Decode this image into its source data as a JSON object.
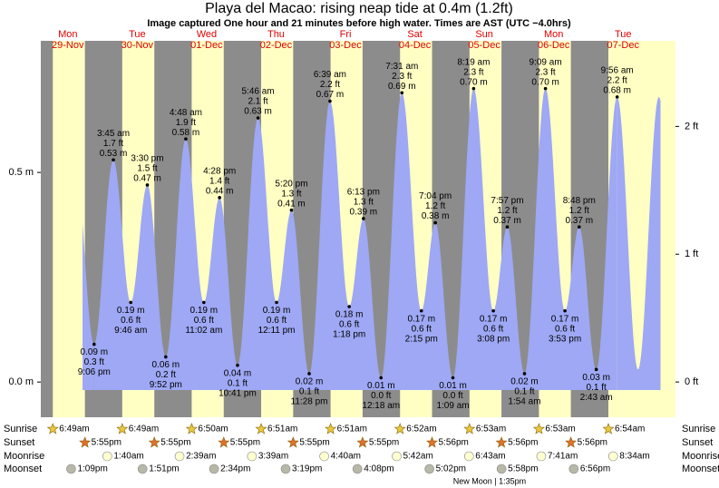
{
  "chart_data": {
    "type": "tide",
    "title": "Playa del Macao: rising  neap tide at 0.4m (1.2ft)",
    "subtitle": "Image captured One hour and 21 minutes before high water. Times are AST (UTC −4.0hrs)",
    "days": [
      "Mon",
      "Tue",
      "Wed",
      "Thu",
      "Fri",
      "Sat",
      "Sun",
      "Mon",
      "Tue"
    ],
    "dates": [
      "29-Nov",
      "30-Nov",
      "01-Dec",
      "02-Dec",
      "03-Dec",
      "04-Dec",
      "05-Dec",
      "06-Dec",
      "07-Dec"
    ],
    "times": [
      "9:06 pm",
      "3:45 am",
      "9:46 am",
      "3:30 pm",
      "9:52 pm",
      "4:48 am",
      "11:02 am",
      "4:28 pm",
      "10:41 pm",
      "5:46 am",
      "12:11 pm",
      "5:20 pm",
      "11:28 pm",
      "6:39 am",
      "1:18 pm",
      "6:13 pm",
      "12:18 am",
      "7:31 am",
      "2:15 pm",
      "7:04 pm",
      "1:09 am",
      "8:19 am",
      "3:08 pm",
      "7:57 pm",
      "1:54 am",
      "9:09 am",
      "3:53 pm",
      "8:48 pm",
      "2:43 am",
      "9:56 am"
    ],
    "heights": [
      0.09,
      0.53,
      0.19,
      0.47,
      0.06,
      0.58,
      0.19,
      0.44,
      0.04,
      0.63,
      0.19,
      0.41,
      0.02,
      0.67,
      0.18,
      0.39,
      0.01,
      0.69,
      0.17,
      0.38,
      0.01,
      0.7,
      0.17,
      0.37,
      0.02,
      0.7,
      0.17,
      0.37,
      0.03,
      0.68
    ],
    "height_labels": [
      "0.09 m",
      "0.53 m",
      "0.19 m",
      "0.47 m",
      "0.06 m",
      "0.58 m",
      "0.19 m",
      "0.44 m",
      "0.04 m",
      "0.63 m",
      "0.19 m",
      "0.41 m",
      "0.02 m",
      "0.67 m",
      "0.18 m",
      "0.39 m",
      "0.01 m",
      "0.69 m",
      "0.17 m",
      "0.38 m",
      "0.01 m",
      "0.70 m",
      "0.17 m",
      "0.37 m",
      "0.02 m",
      "0.70 m",
      "0.17 m",
      "0.37 m",
      "0.03 m",
      "0.68 m"
    ],
    "ft_labels": [
      "0.3 ft",
      "1.7 ft",
      "0.6 ft",
      "1.5 ft",
      "0.2 ft",
      "1.9 ft",
      "0.6 ft",
      "1.4 ft",
      "0.1 ft",
      "2.1 ft",
      "0.6 ft",
      "1.3 ft",
      "0.1 ft",
      "2.2 ft",
      "0.6 ft",
      "1.3 ft",
      "0.0 ft",
      "2.3 ft",
      "0.6 ft",
      "1.2 ft",
      "0.0 ft",
      "2.3 ft",
      "0.6 ft",
      "1.2 ft",
      "0.1 ft",
      "2.3 ft",
      "0.6 ft",
      "1.2 ft",
      "0.1 ft",
      "2.2 ft"
    ],
    "ylim": [
      -0.084,
      0.814
    ],
    "yticks": [
      {
        "value": 0,
        "label": "0.0 m"
      },
      {
        "value": 0.5,
        "label": "0.5 m"
      }
    ],
    "y2lim": [
      -0.276,
      2.67
    ],
    "y2ticks": [
      {
        "value": 0,
        "label": "0 ft"
      },
      {
        "value": 1,
        "label": "1 ft"
      },
      {
        "value": 2,
        "label": "2 ft"
      }
    ],
    "colors": {
      "water": "#9ea8f4",
      "day": "#ffffc4",
      "night": "#8c8c8c",
      "date": "#e00000"
    },
    "almanac": [
      {
        "name": "Sunrise",
        "times": [
          "6:49am",
          "6:49am",
          "6:50am",
          "6:51am",
          "6:51am",
          "6:52am",
          "6:53am",
          "6:53am",
          "6:54am"
        ]
      },
      {
        "name": "Sunset",
        "times": [
          "5:55pm",
          "5:55pm",
          "5:55pm",
          "5:55pm",
          "5:55pm",
          "5:56pm",
          "5:56pm",
          "5:56pm",
          null
        ]
      },
      {
        "name": "Moonrise",
        "times": [
          null,
          "1:40am",
          "2:39am",
          "3:39am",
          "4:40am",
          "5:42am",
          "6:43am",
          "7:41am",
          "8:34am"
        ]
      },
      {
        "name": "Moonset",
        "times": [
          "1:09pm",
          "1:51pm",
          "2:34pm",
          "3:19pm",
          "4:08pm",
          "5:02pm",
          "5:58pm",
          "6:56pm",
          null
        ]
      }
    ],
    "moon_phase": "New Moon | 1:35pm"
  }
}
